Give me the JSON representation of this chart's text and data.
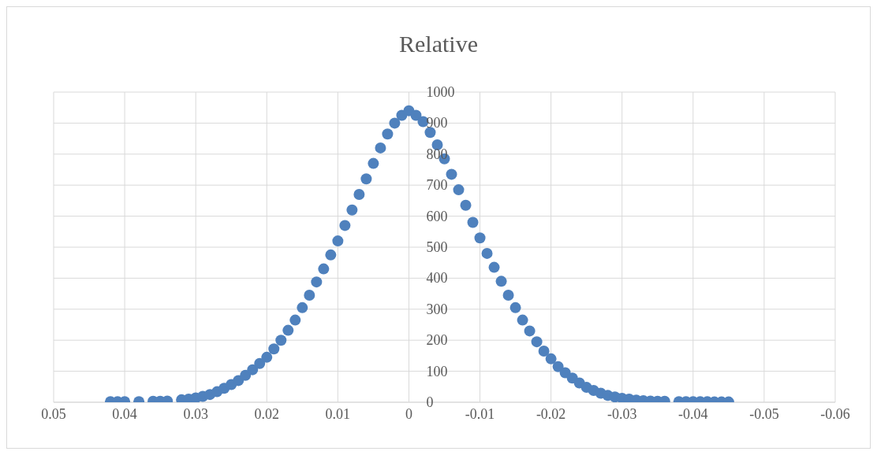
{
  "chart_data": {
    "type": "scatter",
    "title": "Relative",
    "x": [
      0.042,
      0.041,
      0.04,
      0.038,
      0.036,
      0.035,
      0.034,
      0.032,
      0.031,
      0.03,
      0.029,
      0.028,
      0.027,
      0.026,
      0.025,
      0.024,
      0.023,
      0.022,
      0.021,
      0.02,
      0.019,
      0.018,
      0.017,
      0.016,
      0.015,
      0.014,
      0.013,
      0.012,
      0.011,
      0.01,
      0.009,
      0.008,
      0.007,
      0.006,
      0.005,
      0.004,
      0.003,
      0.002,
      0.001,
      0,
      -0.001,
      -0.002,
      -0.003,
      -0.004,
      -0.005,
      -0.006,
      -0.007,
      -0.008,
      -0.009,
      -0.01,
      -0.011,
      -0.012,
      -0.013,
      -0.014,
      -0.015,
      -0.016,
      -0.017,
      -0.018,
      -0.019,
      -0.02,
      -0.021,
      -0.022,
      -0.023,
      -0.024,
      -0.025,
      -0.026,
      -0.027,
      -0.028,
      -0.029,
      -0.03,
      -0.031,
      -0.032,
      -0.033,
      -0.034,
      -0.035,
      -0.036,
      -0.038,
      -0.039,
      -0.04,
      -0.041,
      -0.042,
      -0.043,
      -0.044,
      -0.045
    ],
    "values": [
      2,
      2,
      2,
      2,
      3,
      3,
      4,
      8,
      10,
      14,
      19,
      25,
      34,
      45,
      57,
      70,
      87,
      105,
      125,
      145,
      172,
      200,
      232,
      265,
      305,
      345,
      388,
      430,
      475,
      520,
      570,
      620,
      670,
      720,
      770,
      820,
      865,
      900,
      925,
      940,
      925,
      905,
      870,
      830,
      785,
      735,
      685,
      635,
      580,
      530,
      480,
      435,
      390,
      345,
      305,
      265,
      230,
      195,
      165,
      140,
      115,
      95,
      78,
      62,
      48,
      38,
      29,
      22,
      17,
      13,
      10,
      7,
      5,
      4,
      3,
      3,
      2,
      2,
      2,
      2,
      2,
      1,
      1,
      1
    ],
    "color": "#4f81bd",
    "marker": "circle",
    "xlim": [
      0.05,
      -0.06
    ],
    "xticks": [
      0.05,
      0.04,
      0.03,
      0.02,
      0.01,
      0,
      -0.01,
      -0.02,
      -0.03,
      -0.04,
      -0.05,
      -0.06
    ],
    "ylim": [
      0,
      1000
    ],
    "yticks": [
      0,
      100,
      200,
      300,
      400,
      500,
      600,
      700,
      800,
      900,
      1000
    ],
    "grid": true
  }
}
